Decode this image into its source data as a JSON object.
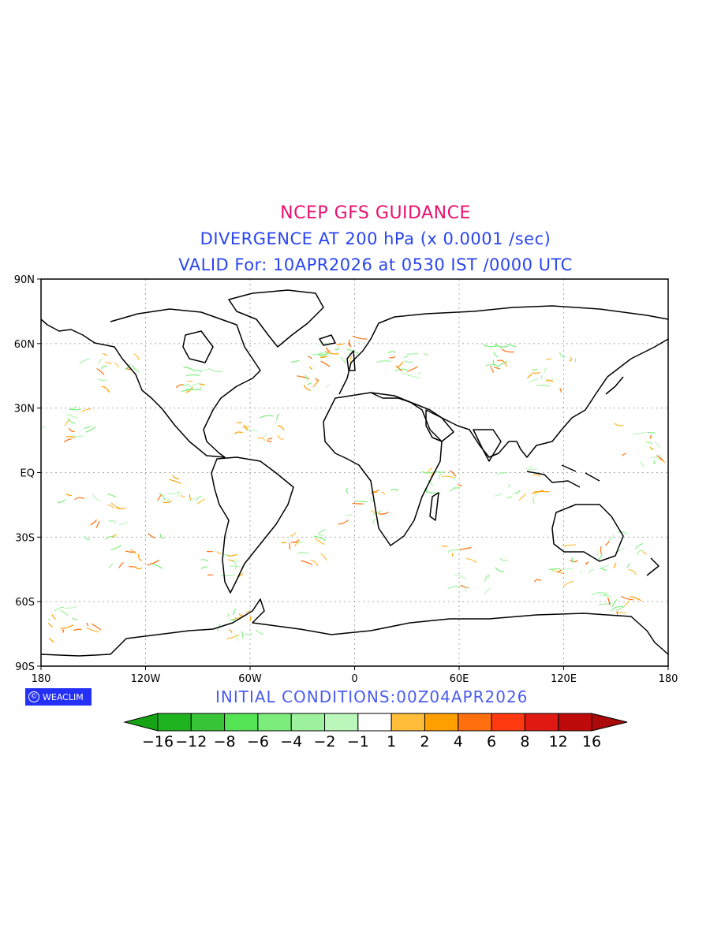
{
  "header": {
    "title": "NCEP GFS GUIDANCE",
    "subtitle": "DIVERGENCE AT 200 hPa (x 0.0001 /sec)",
    "valid": "VALID For: 10APR2026 at 0530 IST /0000 UTC"
  },
  "axes": {
    "lat_labels": [
      "90N",
      "60N",
      "30N",
      "EQ",
      "30S",
      "60S",
      "90S"
    ],
    "lon_labels": [
      "180",
      "120W",
      "60W",
      "0",
      "60E",
      "120E",
      "180"
    ]
  },
  "footer": {
    "badge_text": "WEACLIM",
    "initial": "INITIAL CONDITIONS:00Z04APR2026"
  },
  "colorbar": {
    "labels": [
      "-16",
      "-12",
      "-8",
      "-6",
      "-4",
      "-2",
      "-1",
      "1",
      "2",
      "4",
      "6",
      "8",
      "12",
      "16"
    ],
    "colors": {
      "under": "#16a316",
      "bins": [
        "#1fb41f",
        "#37c437",
        "#55e455",
        "#7ced7c",
        "#9ef29e",
        "#bbf7bb",
        "#ffffff",
        "#ffbd3a",
        "#ff9f00",
        "#ff6f0d",
        "#ff3a10",
        "#e01a12",
        "#be0a0a"
      ],
      "over": "#aa0a0a"
    }
  },
  "colors": {
    "title": "#e8116f",
    "subtitle": "#2a45f0",
    "initial": "#4a5cf0",
    "badge": "#2430f5"
  }
}
